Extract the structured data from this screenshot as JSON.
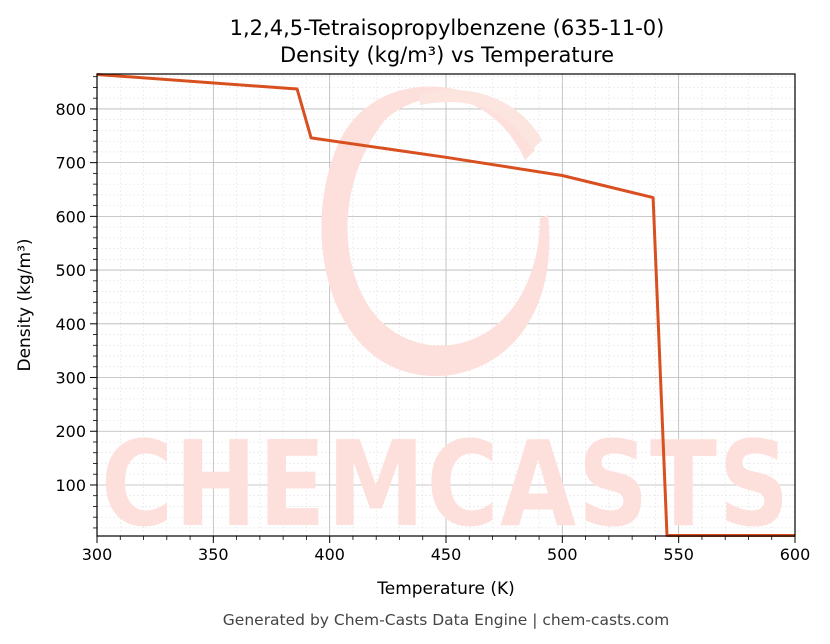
{
  "chart_data": {
    "type": "line",
    "title": "1,2,4,5-Tetraisopropylbenzene (635-11-0)",
    "subtitle": "Density (kg/m³) vs Temperature",
    "xlabel": "Temperature (K)",
    "ylabel": "Density (kg/m³)",
    "xlim": [
      300,
      600
    ],
    "ylim": [
      5,
      865
    ],
    "x_ticks": [
      300,
      350,
      400,
      450,
      500,
      550,
      600
    ],
    "y_ticks": [
      100,
      200,
      300,
      400,
      500,
      600,
      700,
      800
    ],
    "grid": true,
    "series": [
      {
        "color": "#d95020",
        "points": [
          [
            300,
            864
          ],
          [
            386,
            837
          ],
          [
            392,
            746
          ],
          [
            450,
            710
          ],
          [
            500,
            676
          ],
          [
            539,
            635
          ],
          [
            545,
            6
          ],
          [
            600,
            6
          ]
        ]
      }
    ]
  },
  "watermark": {
    "text": "CHEMCASTS"
  },
  "footer": "Generated by Chem-Casts Data Engine | chem-casts.com"
}
